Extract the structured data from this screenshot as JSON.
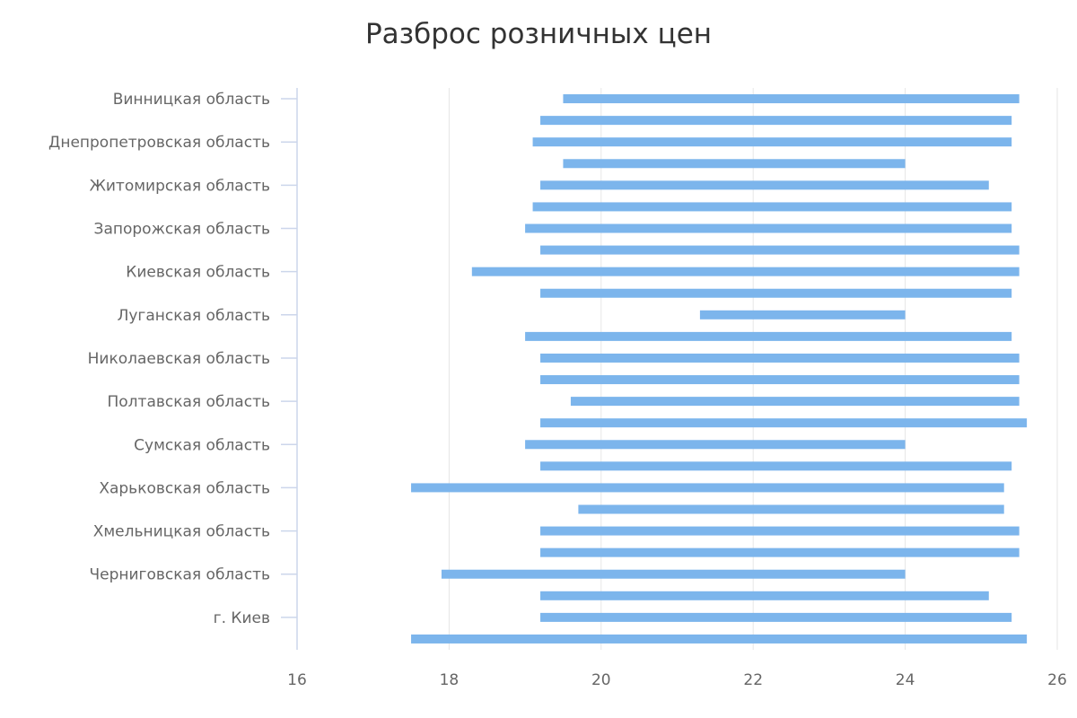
{
  "chart_data": {
    "type": "bar",
    "orientation": "horizontal-range",
    "title": "Разброс розничных цен",
    "xlabel": "",
    "ylabel": "",
    "xlim": [
      16,
      26
    ],
    "x_ticks": [
      16,
      18,
      20,
      22,
      24,
      26
    ],
    "grid": true,
    "legend": "none",
    "bar_color": "#7cb5ec",
    "categories": [
      "Винницкая область",
      "",
      "Днепропетровская область",
      "",
      "Житомирская область",
      "",
      "Запорожская область",
      "",
      "Киевская область",
      "",
      "Луганская область",
      "",
      "Николаевская область",
      "",
      "Полтавская область",
      "",
      "Сумская область",
      "",
      "Харьковская область",
      "",
      "Хмельницкая область",
      "",
      "Черниговская область",
      "",
      "г. Киев",
      ""
    ],
    "ranges": [
      [
        19.5,
        25.5
      ],
      [
        19.2,
        25.4
      ],
      [
        19.1,
        25.4
      ],
      [
        19.5,
        24.0
      ],
      [
        19.2,
        25.1
      ],
      [
        19.1,
        25.4
      ],
      [
        19.0,
        25.4
      ],
      [
        19.2,
        25.5
      ],
      [
        18.3,
        25.5
      ],
      [
        19.2,
        25.4
      ],
      [
        21.3,
        24.0
      ],
      [
        19.0,
        25.4
      ],
      [
        19.2,
        25.5
      ],
      [
        19.2,
        25.5
      ],
      [
        19.6,
        25.5
      ],
      [
        19.2,
        25.6
      ],
      [
        19.0,
        24.0
      ],
      [
        19.2,
        25.4
      ],
      [
        17.5,
        25.3
      ],
      [
        19.7,
        25.3
      ],
      [
        19.2,
        25.5
      ],
      [
        19.2,
        25.5
      ],
      [
        17.9,
        24.0
      ],
      [
        19.2,
        25.1
      ],
      [
        19.2,
        25.4
      ],
      [
        17.5,
        25.6
      ]
    ]
  }
}
